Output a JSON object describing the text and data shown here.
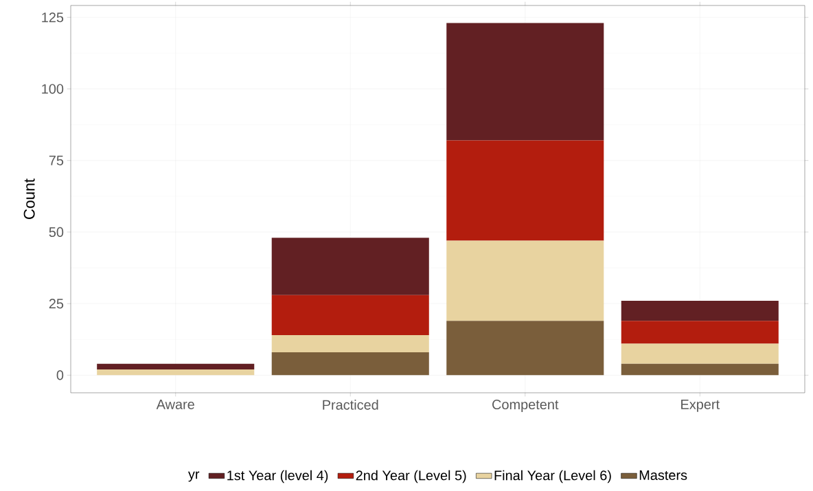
{
  "chart_data": {
    "type": "bar",
    "stacked": true,
    "ylabel": "Count",
    "legend_title": "yr",
    "legend": "bottom",
    "grid": true,
    "categories": [
      "Aware",
      "Practiced",
      "Competent",
      "Expert"
    ],
    "ylim": [
      -6.15,
      129.15
    ],
    "yticks": [
      0,
      25,
      50,
      75,
      100,
      125
    ],
    "series": [
      {
        "name": "Masters",
        "color": "#7a5e3b",
        "values": [
          0,
          8,
          19,
          4
        ]
      },
      {
        "name": "Final Year (Level 6)",
        "color": "#e8d3a0",
        "values": [
          2,
          6,
          28,
          7
        ]
      },
      {
        "name": "2nd Year (Level 5)",
        "color": "#b31d0e",
        "values": [
          0,
          14,
          35,
          8
        ]
      },
      {
        "name": "1st Year (level 4)",
        "color": "#622023",
        "values": [
          2,
          20,
          41,
          7
        ]
      }
    ]
  }
}
